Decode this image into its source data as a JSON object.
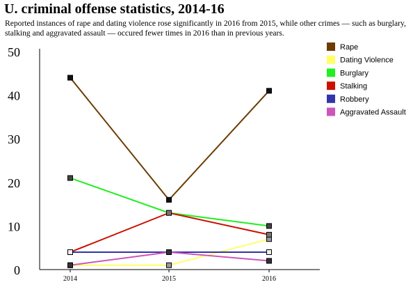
{
  "chart_data": {
    "type": "line",
    "title": "U. criminal offense statistics, 2014-16",
    "subtitle": "Reported instances of rape and dating violence rose significantly in 2016 from 2015, while other crimes — such as burglary, stalking and aggravated assault — occured fewer times in 2016 than in previous years.",
    "xlabel": "",
    "ylabel": "",
    "x": [
      "2014",
      "2015",
      "2016"
    ],
    "ylim": [
      0,
      50
    ],
    "yticks": [
      "0",
      "10",
      "20",
      "30",
      "40",
      "50"
    ],
    "grid": false,
    "legend_position": "right",
    "series": [
      {
        "name": "Rape",
        "values": [
          44,
          16,
          41
        ],
        "color": "#6b3d00",
        "marker": "#111111"
      },
      {
        "name": "Dating Violence",
        "values": [
          1,
          1,
          7
        ],
        "color": "#ffff66",
        "marker": "#999999"
      },
      {
        "name": "Burglary",
        "values": [
          21,
          13,
          10
        ],
        "color": "#22ee22",
        "marker": "#444444"
      },
      {
        "name": "Stalking",
        "values": [
          4,
          13,
          8
        ],
        "color": "#cc1100",
        "marker": "#777777"
      },
      {
        "name": "Robbery",
        "values": [
          4,
          4,
          4
        ],
        "color": "#3333aa",
        "marker": "#f0f0f0"
      },
      {
        "name": "Aggravated Assault",
        "values": [
          1,
          4,
          2
        ],
        "color": "#cc55bb",
        "marker": "#333333"
      }
    ]
  }
}
